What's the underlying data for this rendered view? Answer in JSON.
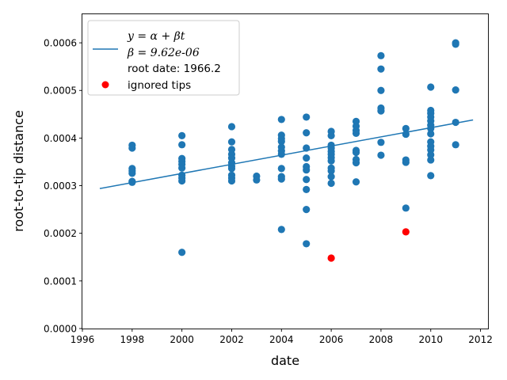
{
  "chart_data": {
    "type": "scatter",
    "title": "",
    "xlabel": "date",
    "ylabel": "root-to-tip distance",
    "xlim": [
      1996.0,
      2012.3
    ],
    "ylim": [
      0.0,
      0.00066
    ],
    "xticks": [
      1996,
      1998,
      2000,
      2002,
      2004,
      2006,
      2008,
      2010,
      2012
    ],
    "yticks": [
      0.0,
      0.0001,
      0.0002,
      0.0003,
      0.0004,
      0.0005,
      0.0006
    ],
    "ytick_labels": [
      "0.0000",
      "0.0001",
      "0.0002",
      "0.0003",
      "0.0004",
      "0.0005",
      "0.0006"
    ],
    "grid": false,
    "legend": {
      "placement": "top-left",
      "entries": [
        {
          "label_lines": [
            "y = α + βt",
            "β = 9.62e-06",
            "root date: 1966.2"
          ],
          "marker": "line",
          "color": "#1f77b4"
        },
        {
          "label_lines": [
            "ignored tips"
          ],
          "marker": "dot",
          "color": "#ff0000"
        }
      ]
    },
    "regression": {
      "name": "y = α + βt",
      "x": [
        1996.7,
        2011.7
      ],
      "y": [
        0.000294,
        0.000438
      ],
      "slope": "9.62e-06",
      "root_date": "1966.2",
      "color": "#1f77b4"
    },
    "series": [
      {
        "name": "tips",
        "color": "#1f77b4",
        "points": [
          [
            1998,
            0.000385
          ],
          [
            1998,
            0.000379
          ],
          [
            1998,
            0.000336
          ],
          [
            1998,
            0.000331
          ],
          [
            1998,
            0.000326
          ],
          [
            1998,
            0.000309
          ],
          [
            1998,
            0.000307
          ],
          [
            2000,
            0.000405
          ],
          [
            2000,
            0.000386
          ],
          [
            2000,
            0.000357
          ],
          [
            2000,
            0.000351
          ],
          [
            2000,
            0.000345
          ],
          [
            2000,
            0.000337
          ],
          [
            2000,
            0.000322
          ],
          [
            2000,
            0.000316
          ],
          [
            2000,
            0.00031
          ],
          [
            2000,
            0.00016
          ],
          [
            2002,
            0.000424
          ],
          [
            2002,
            0.000392
          ],
          [
            2002,
            0.000376
          ],
          [
            2002,
            0.000366
          ],
          [
            2002,
            0.000358
          ],
          [
            2002,
            0.000348
          ],
          [
            2002,
            0.000341
          ],
          [
            2002,
            0.000336
          ],
          [
            2002,
            0.000322
          ],
          [
            2002,
            0.000316
          ],
          [
            2002,
            0.00031
          ],
          [
            2003,
            0.00032
          ],
          [
            2003,
            0.000312
          ],
          [
            2004,
            0.000439
          ],
          [
            2004,
            0.000406
          ],
          [
            2004,
            0.000399
          ],
          [
            2004,
            0.000393
          ],
          [
            2004,
            0.000381
          ],
          [
            2004,
            0.000373
          ],
          [
            2004,
            0.000366
          ],
          [
            2004,
            0.000336
          ],
          [
            2004,
            0.000319
          ],
          [
            2004,
            0.000314
          ],
          [
            2004,
            0.000208
          ],
          [
            2005,
            0.000444
          ],
          [
            2005,
            0.000411
          ],
          [
            2005,
            0.000379
          ],
          [
            2005,
            0.000358
          ],
          [
            2005,
            0.00034
          ],
          [
            2005,
            0.000333
          ],
          [
            2005,
            0.000313
          ],
          [
            2005,
            0.000292
          ],
          [
            2005,
            0.00025
          ],
          [
            2005,
            0.000178
          ],
          [
            2006,
            0.000414
          ],
          [
            2006,
            0.000405
          ],
          [
            2006,
            0.000385
          ],
          [
            2006,
            0.000379
          ],
          [
            2006,
            0.000372
          ],
          [
            2006,
            0.000366
          ],
          [
            2006,
            0.000359
          ],
          [
            2006,
            0.000352
          ],
          [
            2006,
            0.000337
          ],
          [
            2006,
            0.000331
          ],
          [
            2006,
            0.000319
          ],
          [
            2006,
            0.000305
          ],
          [
            2007,
            0.000435
          ],
          [
            2007,
            0.000425
          ],
          [
            2007,
            0.000416
          ],
          [
            2007,
            0.00041
          ],
          [
            2007,
            0.000374
          ],
          [
            2007,
            0.00037
          ],
          [
            2007,
            0.000355
          ],
          [
            2007,
            0.000348
          ],
          [
            2007,
            0.000308
          ],
          [
            2008,
            0.000573
          ],
          [
            2008,
            0.000545
          ],
          [
            2008,
            0.0005
          ],
          [
            2008,
            0.000463
          ],
          [
            2008,
            0.000457
          ],
          [
            2008,
            0.000391
          ],
          [
            2008,
            0.000364
          ],
          [
            2009,
            0.00042
          ],
          [
            2009,
            0.000408
          ],
          [
            2009,
            0.000354
          ],
          [
            2009,
            0.000349
          ],
          [
            2009,
            0.000253
          ],
          [
            2010,
            0.000507
          ],
          [
            2010,
            0.000458
          ],
          [
            2010,
            0.000452
          ],
          [
            2010,
            0.000444
          ],
          [
            2010,
            0.000436
          ],
          [
            2010,
            0.000427
          ],
          [
            2010,
            0.00042
          ],
          [
            2010,
            0.000409
          ],
          [
            2010,
            0.000392
          ],
          [
            2010,
            0.000383
          ],
          [
            2010,
            0.000375
          ],
          [
            2010,
            0.000365
          ],
          [
            2010,
            0.000354
          ],
          [
            2010,
            0.000321
          ],
          [
            2011,
            0.0006
          ],
          [
            2011,
            0.000597
          ],
          [
            2011,
            0.000501
          ],
          [
            2011,
            0.000433
          ],
          [
            2011,
            0.000386
          ]
        ]
      },
      {
        "name": "ignored tips",
        "color": "#ff0000",
        "points": [
          [
            2006,
            0.000148
          ],
          [
            2009,
            0.000203
          ]
        ]
      }
    ]
  }
}
